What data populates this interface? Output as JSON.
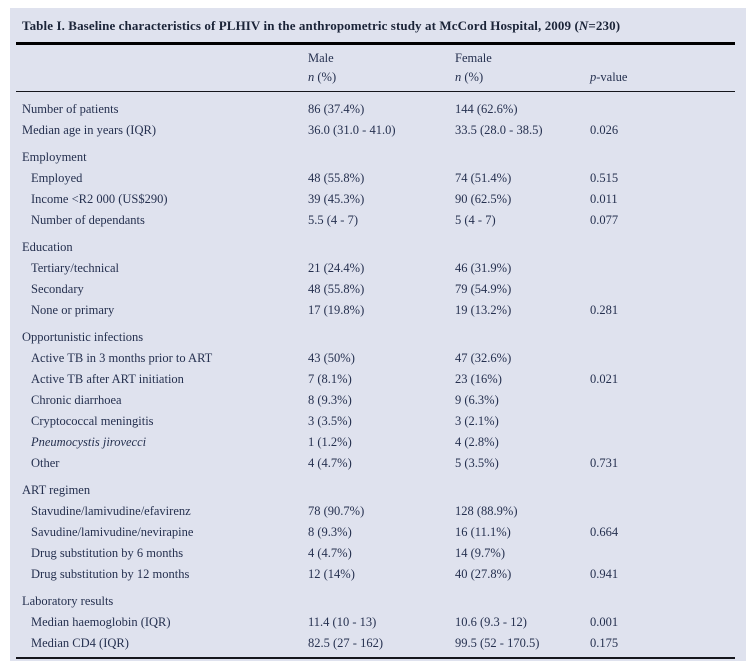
{
  "colors": {
    "page_background": "#ffffff",
    "panel_background": "#dfe2ee",
    "text": "#25304f",
    "title_text": "#1b2438",
    "rule": "#000000"
  },
  "title": {
    "prefix": "Table I. Baseline characteristics of PLHIV in the anthropometric study at McCord Hospital, 2009 (",
    "n": "N",
    "suffix": "=230)"
  },
  "headers": {
    "male": "Male",
    "female": "Female",
    "n": "n",
    "n_rest": " (%)",
    "p": "p",
    "p_rest": "-value"
  },
  "rows": [
    {
      "label": "Number of patients",
      "section": false,
      "indent": false,
      "italic": false,
      "male": "86 (37.4%)",
      "female": "144 (62.6%)",
      "p": ""
    },
    {
      "label": "Median age in years (IQR)",
      "section": false,
      "indent": false,
      "italic": false,
      "male": "36.0 (31.0 - 41.0)",
      "female": "33.5 (28.0 - 38.5)",
      "p": "0.026"
    },
    {
      "label": "Employment",
      "section": true,
      "indent": false,
      "italic": false,
      "male": "",
      "female": "",
      "p": ""
    },
    {
      "label": "Employed",
      "section": false,
      "indent": true,
      "italic": false,
      "male": "48 (55.8%)",
      "female": "74 (51.4%)",
      "p": "0.515"
    },
    {
      "label": "Income <R2 000 (US$290)",
      "section": false,
      "indent": true,
      "italic": false,
      "male": "39 (45.3%)",
      "female": "90 (62.5%)",
      "p": "0.011"
    },
    {
      "label": "Number of dependants",
      "section": false,
      "indent": true,
      "italic": false,
      "male": "5.5 (4 - 7)",
      "female": "5 (4 - 7)",
      "p": "0.077"
    },
    {
      "label": "Education",
      "section": true,
      "indent": false,
      "italic": false,
      "male": "",
      "female": "",
      "p": ""
    },
    {
      "label": "Tertiary/technical",
      "section": false,
      "indent": true,
      "italic": false,
      "male": "21 (24.4%)",
      "female": "46 (31.9%)",
      "p": ""
    },
    {
      "label": "Secondary",
      "section": false,
      "indent": true,
      "italic": false,
      "male": "48 (55.8%)",
      "female": "79 (54.9%)",
      "p": ""
    },
    {
      "label": "None or primary",
      "section": false,
      "indent": true,
      "italic": false,
      "male": "17 (19.8%)",
      "female": "19 (13.2%)",
      "p": "0.281"
    },
    {
      "label": "Opportunistic infections",
      "section": true,
      "indent": false,
      "italic": false,
      "male": "",
      "female": "",
      "p": ""
    },
    {
      "label": "Active TB in 3 months prior to ART",
      "section": false,
      "indent": true,
      "italic": false,
      "male": "43 (50%)",
      "female": "47 (32.6%)",
      "p": ""
    },
    {
      "label": "Active TB after ART initiation",
      "section": false,
      "indent": true,
      "italic": false,
      "male": "7 (8.1%)",
      "female": "23 (16%)",
      "p": "0.021"
    },
    {
      "label": "Chronic diarrhoea",
      "section": false,
      "indent": true,
      "italic": false,
      "male": "8 (9.3%)",
      "female": "9 (6.3%)",
      "p": ""
    },
    {
      "label": "Cryptococcal meningitis",
      "section": false,
      "indent": true,
      "italic": false,
      "male": "3 (3.5%)",
      "female": "3 (2.1%)",
      "p": ""
    },
    {
      "label": "Pneumocystis jirovecci",
      "section": false,
      "indent": true,
      "italic": true,
      "male": "1 (1.2%)",
      "female": "4 (2.8%)",
      "p": ""
    },
    {
      "label": "Other",
      "section": false,
      "indent": true,
      "italic": false,
      "male": "4 (4.7%)",
      "female": "5 (3.5%)",
      "p": "0.731"
    },
    {
      "label": "ART regimen",
      "section": true,
      "indent": false,
      "italic": false,
      "male": "",
      "female": "",
      "p": ""
    },
    {
      "label": "Stavudine/lamivudine/efavirenz",
      "section": false,
      "indent": true,
      "italic": false,
      "male": "78 (90.7%)",
      "female": "128 (88.9%)",
      "p": ""
    },
    {
      "label": "Savudine/lamivudine/nevirapine",
      "section": false,
      "indent": true,
      "italic": false,
      "male": "8 (9.3%)",
      "female": "16 (11.1%)",
      "p": "0.664"
    },
    {
      "label": "Drug substitution by 6 months",
      "section": false,
      "indent": true,
      "italic": false,
      "male": "4 (4.7%)",
      "female": "14 (9.7%)",
      "p": ""
    },
    {
      "label": "Drug substitution by 12 months",
      "section": false,
      "indent": true,
      "italic": false,
      "male": "12 (14%)",
      "female": "40 (27.8%)",
      "p": "0.941"
    },
    {
      "label": "Laboratory results",
      "section": true,
      "indent": false,
      "italic": false,
      "male": "",
      "female": "",
      "p": ""
    },
    {
      "label": "Median haemoglobin (IQR)",
      "section": false,
      "indent": true,
      "italic": false,
      "male": "11.4 (10 - 13)",
      "female": "10.6 (9.3 - 12)",
      "p": "0.001"
    },
    {
      "label": "Median CD4 (IQR)",
      "section": false,
      "indent": true,
      "italic": false,
      "male": "82.5 (27 - 162)",
      "female": "99.5 (52 - 170.5)",
      "p": "0.175"
    }
  ]
}
